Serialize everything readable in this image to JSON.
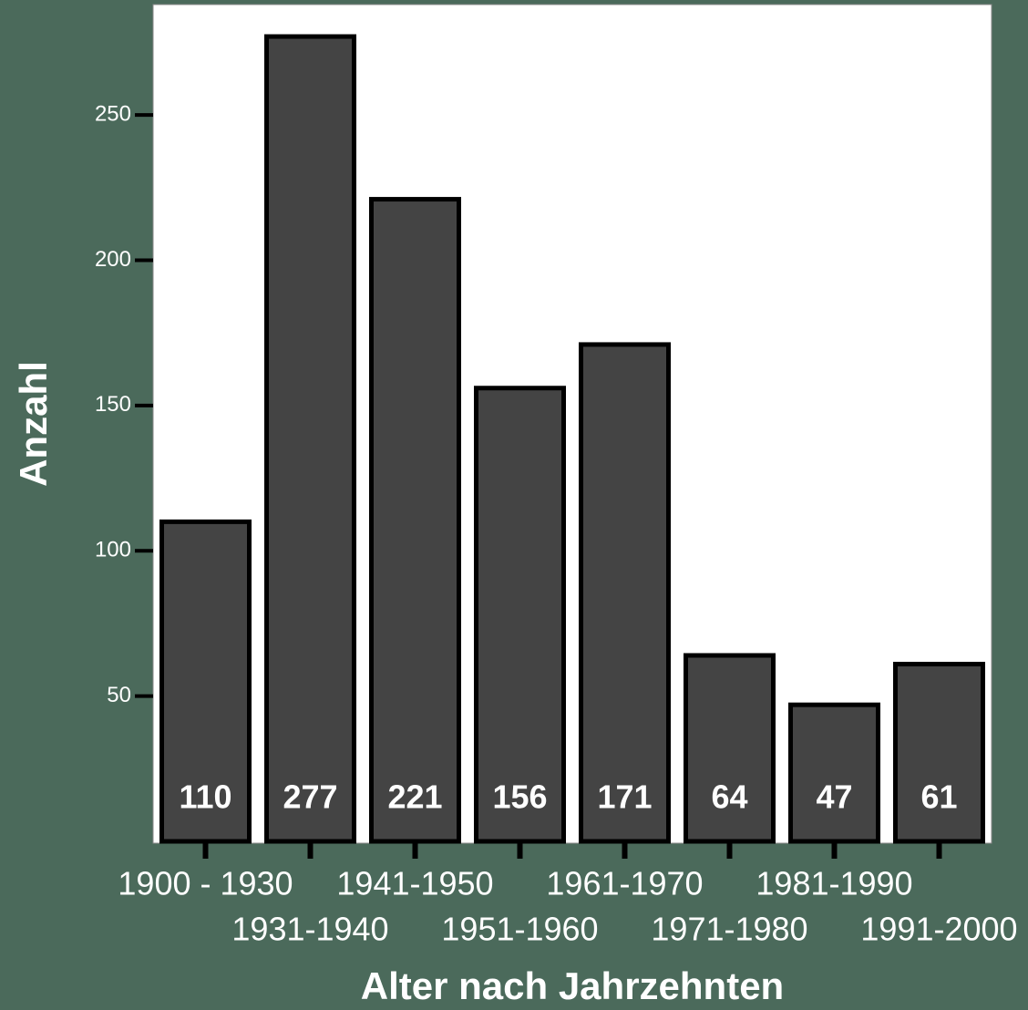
{
  "chart_data": {
    "type": "bar",
    "x_label": "Alter nach Jahrzehnten",
    "y_label": "Anzahl",
    "categories": [
      "1900 - 1930",
      "1931-1940",
      "1941-1950",
      "1951-1960",
      "1961-1970",
      "1971-1980",
      "1981-1990",
      "1991-2000"
    ],
    "values": [
      110,
      277,
      221,
      156,
      171,
      64,
      47,
      61
    ],
    "color": "#444444",
    "ylim": [
      0,
      288
    ],
    "yticks": [
      50,
      100,
      150,
      200,
      250
    ]
  }
}
